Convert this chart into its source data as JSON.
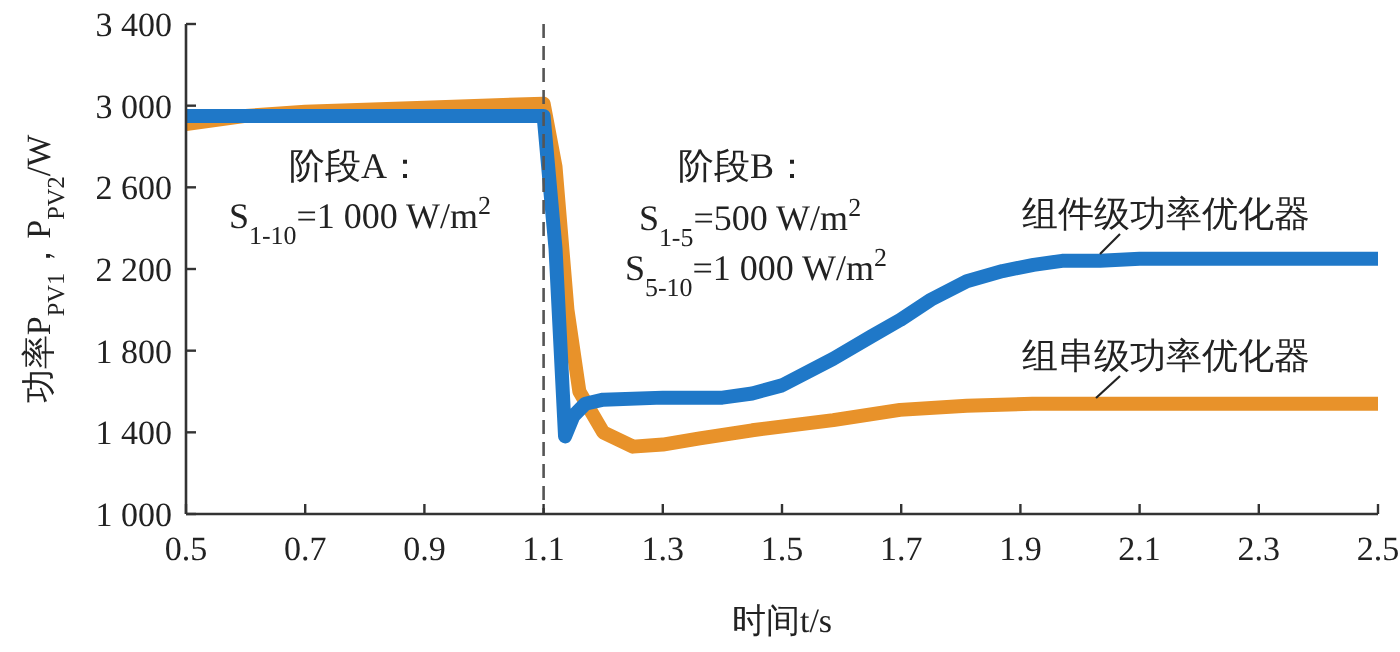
{
  "chart_data": {
    "type": "line",
    "xlabel": "时间t/s",
    "ylabel": "功率P$_{PV1}$，P$_{PV2}$/W",
    "xlim": [
      0.5,
      2.5
    ],
    "ylim": [
      1000,
      3400
    ],
    "xticks": [
      0.5,
      0.7,
      0.9,
      1.1,
      1.3,
      1.5,
      1.7,
      1.9,
      2.1,
      2.3,
      2.5
    ],
    "yticks": [
      {
        "value": 1000,
        "label": "1 000"
      },
      {
        "value": 1400,
        "label": "1 400"
      },
      {
        "value": 1800,
        "label": "1 800"
      },
      {
        "value": 2200,
        "label": "2 200"
      },
      {
        "value": 2600,
        "label": "2 600"
      },
      {
        "value": 3000,
        "label": "3 000"
      },
      {
        "value": 3400,
        "label": "3 400"
      }
    ],
    "series": [
      {
        "name": "组串级功率优化器",
        "color": "#e8922a",
        "x": [
          0.5,
          0.6,
          0.7,
          0.9,
          1.1,
          1.12,
          1.14,
          1.16,
          1.2,
          1.25,
          1.3,
          1.362,
          1.45,
          1.586,
          1.698,
          1.81,
          1.92,
          2.1,
          2.3,
          2.5
        ],
        "values": [
          2910,
          2950,
          2970,
          2990,
          3010,
          2700,
          2000,
          1600,
          1400,
          1330,
          1340,
          1370,
          1410,
          1460,
          1510,
          1530,
          1540,
          1540,
          1540,
          1540
        ]
      },
      {
        "name": "组件级功率优化器",
        "color": "#1f78c8",
        "x": [
          0.5,
          0.7,
          0.9,
          1.1,
          1.12,
          1.136,
          1.15,
          1.17,
          1.2,
          1.3,
          1.4,
          1.45,
          1.5,
          1.586,
          1.65,
          1.698,
          1.75,
          1.81,
          1.87,
          1.922,
          1.97,
          2.034,
          2.1,
          2.3,
          2.5
        ],
        "values": [
          2950,
          2950,
          2950,
          2950,
          2300,
          1380,
          1480,
          1540,
          1560,
          1570,
          1570,
          1590,
          1630,
          1760,
          1870,
          1950,
          2050,
          2140,
          2190,
          2220,
          2240,
          2240,
          2250,
          2250,
          2250
        ]
      }
    ],
    "ref_lines": [
      {
        "axis": "x",
        "value": 1.1,
        "line_style": "dashed",
        "color": "#555555"
      }
    ],
    "annotations": [
      "阶段A：",
      "S$_{1-10}$=1 000 W/m$^{2}$",
      "阶段B：",
      "S$_{1-5}$=500 W/m$^{2}$",
      "S$_{5-10}$=1 000 W/m$^{2}$"
    ]
  }
}
